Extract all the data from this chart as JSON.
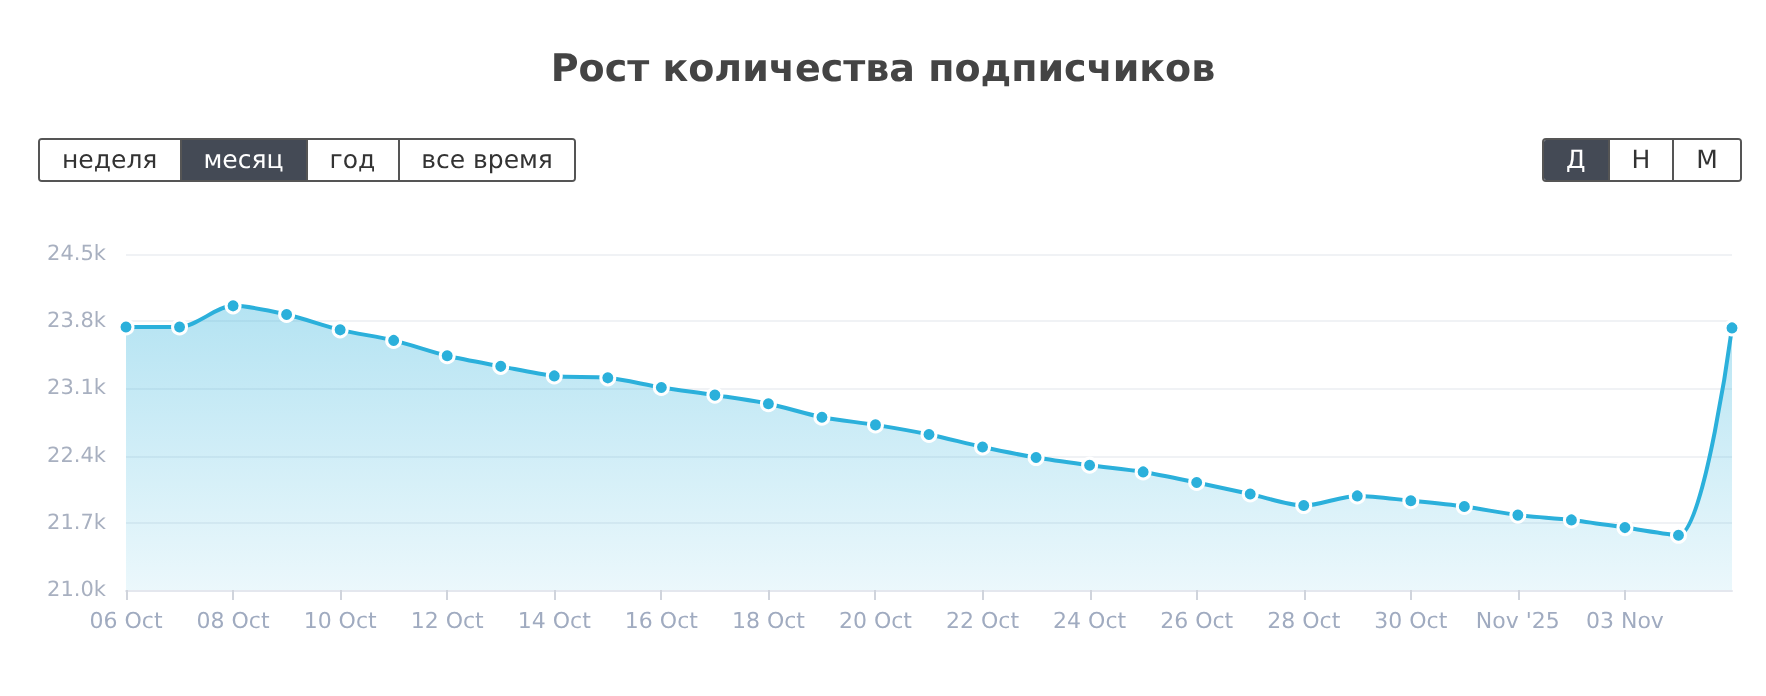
{
  "chart_data": {
    "type": "area",
    "title": "Рост количества подписчиков",
    "categories": [
      "06 Oct",
      null,
      "08 Oct",
      null,
      "10 Oct",
      null,
      "12 Oct",
      null,
      "14 Oct",
      null,
      "16 Oct",
      null,
      "18 Oct",
      null,
      "20 Oct",
      null,
      "22 Oct",
      null,
      "24 Oct",
      null,
      "26 Oct",
      null,
      "28 Oct",
      null,
      "30 Oct",
      null,
      "Nov '25",
      null,
      "03 Nov",
      null,
      null
    ],
    "series": [
      {
        "color": "#2bb0db",
        "values": [
          23.74,
          23.74,
          23.96,
          23.87,
          23.71,
          23.6,
          23.44,
          23.33,
          23.23,
          23.21,
          23.11,
          23.03,
          22.94,
          22.8,
          22.72,
          22.62,
          22.49,
          22.38,
          22.3,
          22.23,
          22.12,
          22.0,
          21.88,
          21.98,
          21.93,
          21.87,
          21.78,
          21.73,
          21.65,
          21.57,
          23.73
        ]
      }
    ],
    "ylim": [
      21.0,
      24.5
    ],
    "yticks": [
      {
        "value": 21.0,
        "label": "21.0k"
      },
      {
        "value": 21.7,
        "label": "21.7k"
      },
      {
        "value": 22.4,
        "label": "22.4k"
      },
      {
        "value": 23.1,
        "label": "23.1k"
      },
      {
        "value": 23.8,
        "label": "23.8k"
      },
      {
        "value": 24.5,
        "label": "24.5k"
      }
    ],
    "grid": "y",
    "marker": "circle",
    "line_style": "solid",
    "annotations": [
      "неделя",
      "месяц",
      "год",
      "все время",
      "Д",
      "Н",
      "М"
    ]
  }
}
